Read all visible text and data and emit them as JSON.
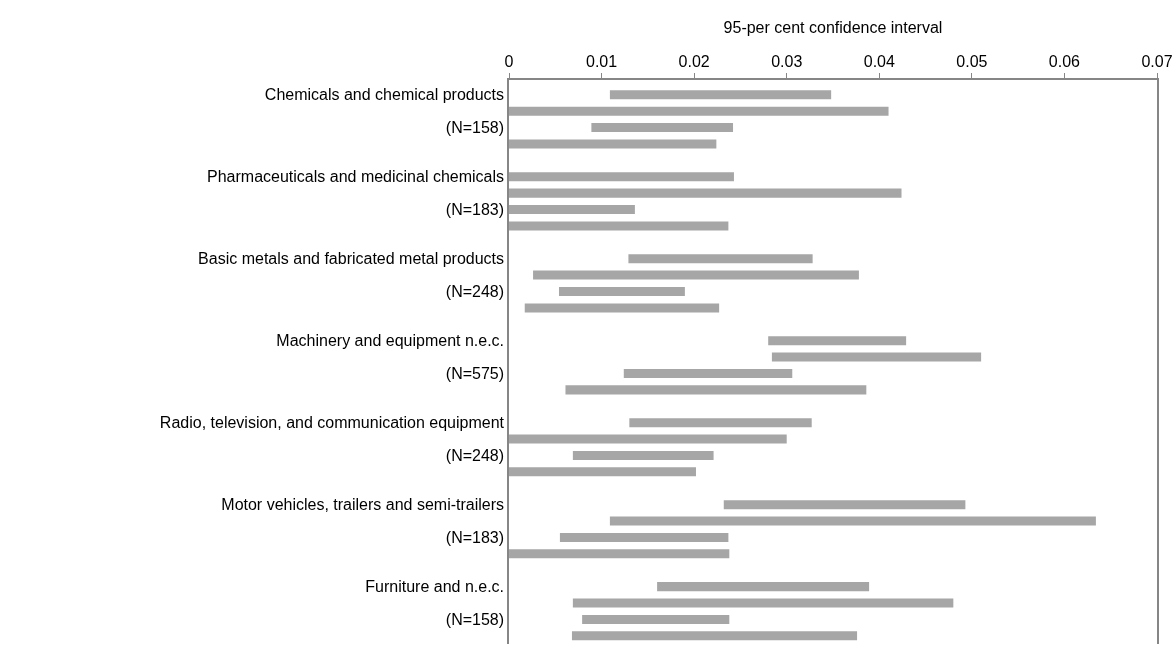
{
  "chart_data": {
    "type": "bar",
    "orientation": "horizontal",
    "xlabel": "95-per cent confidence interval",
    "color": "#a6a6a6",
    "categories": [
      "Chemicals and chemical products",
      null,
      "(N=158)",
      null,
      null,
      "Pharmaceuticals and medicinal chemicals",
      null,
      "(N=183)",
      null,
      null,
      "Basic metals and fabricated metal products",
      null,
      "(N=248)",
      null,
      null,
      "Machinery and equipment n.e.c.",
      null,
      "(N=575)",
      null,
      null,
      "Radio, television, and communication equipment",
      null,
      "(N=248)",
      null,
      null,
      "Motor vehicles, trailers and semi-trailers",
      null,
      "(N=183)",
      null,
      null,
      "Furniture and n.e.c.",
      null,
      "(N=158)",
      null
    ],
    "base": [
      0.0109,
      0,
      0.0089,
      0,
      null,
      0,
      0,
      0,
      0,
      null,
      0.0129,
      0.0026,
      0.0054,
      0.0017,
      null,
      0.028,
      0.0284,
      0.0124,
      0.0061,
      null,
      0.013,
      0,
      0.0069,
      0,
      null,
      0.0232,
      0.0109,
      0.0055,
      0,
      null,
      0.016,
      0.0069,
      0.0079,
      0.0068
    ],
    "values": [
      0.0239,
      0.041,
      0.0153,
      0.0224,
      null,
      0.0243,
      0.0424,
      0.0136,
      0.0237,
      null,
      0.0199,
      0.0352,
      0.0136,
      0.021,
      null,
      0.0149,
      0.0226,
      0.0182,
      0.0325,
      null,
      0.0197,
      0.03,
      0.0152,
      0.0202,
      null,
      0.0261,
      0.0525,
      0.0182,
      0.0238,
      null,
      0.0229,
      0.0411,
      0.0159,
      0.0308
    ],
    "xlim": [
      0,
      0.07
    ],
    "xticks": [
      0,
      0.01,
      0.02,
      0.03,
      0.04,
      0.05,
      0.06,
      0.07
    ]
  }
}
